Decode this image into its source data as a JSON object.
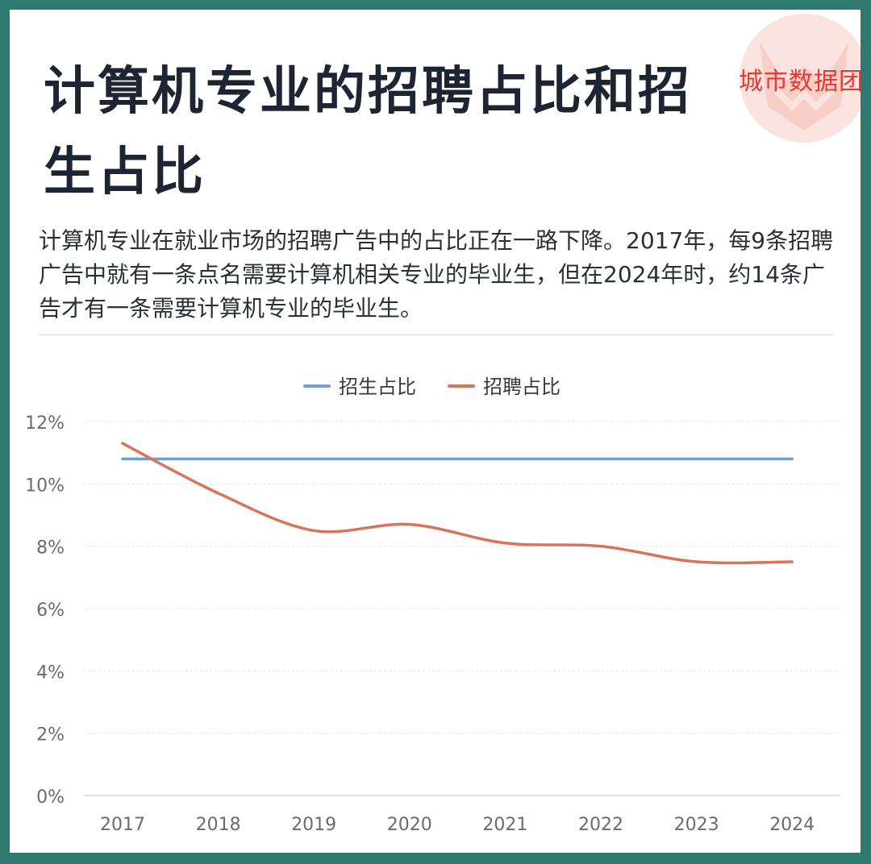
{
  "header": {
    "title": "计算机专业的招聘占比和招生占比",
    "brand": "城市数据团"
  },
  "description": "计算机专业在就业市场的招聘广告中的占比正在一路下降。2017年，每9条招聘广告中就有一条点名需要计算机相关专业的毕业生，但在2024年时，约14条广告才有一条需要计算机专业的毕业生。",
  "colors": {
    "frame": "#2f7a70",
    "enrollment": "#6f9fd8",
    "recruitment": "#d9735a",
    "brand": "#e53935"
  },
  "chart_data": {
    "type": "line",
    "x": [
      "2017",
      "2018",
      "2019",
      "2020",
      "2021",
      "2022",
      "2023",
      "2024"
    ],
    "series": [
      {
        "name": "招生占比",
        "values": [
          10.8,
          10.8,
          10.8,
          10.8,
          10.8,
          10.8,
          10.8,
          10.8
        ],
        "color": "#6f9fd8"
      },
      {
        "name": "招聘占比",
        "values": [
          11.3,
          9.7,
          8.5,
          8.7,
          8.1,
          8.0,
          7.5,
          7.5
        ],
        "color": "#d9735a"
      }
    ],
    "y_ticks": [
      "0%",
      "2%",
      "4%",
      "6%",
      "8%",
      "10%",
      "12%"
    ],
    "ylim": [
      0,
      12
    ],
    "legend_position": "top-center",
    "grid": "horizontal dashed"
  }
}
